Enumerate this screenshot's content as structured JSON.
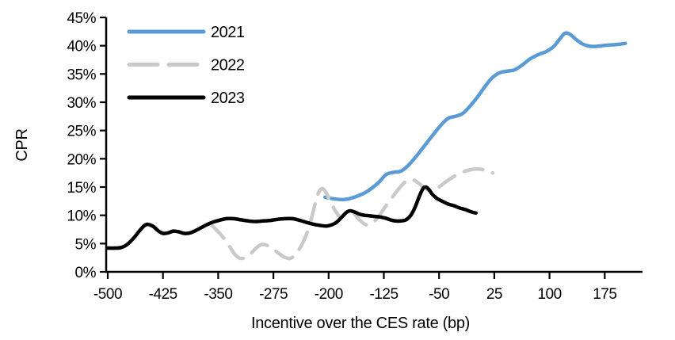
{
  "figure": {
    "background": "#ffffff",
    "axis_color": "#000000"
  },
  "chart_data": {
    "type": "line",
    "title": "",
    "xlabel": "Incentive over the CES rate (bp)",
    "ylabel": "CPR",
    "xlim": [
      -500,
      230
    ],
    "ylim": [
      0,
      45
    ],
    "x_ticks": [
      -500,
      -425,
      -350,
      -275,
      -200,
      -125,
      -50,
      25,
      100,
      175
    ],
    "y_ticks": [
      0,
      5,
      10,
      15,
      20,
      25,
      30,
      35,
      40,
      45
    ],
    "y_tick_suffix": "%",
    "grid": false,
    "legend_position": "top-left-inside",
    "series": [
      {
        "name": "2021",
        "color": "#5B9BD5",
        "dash": "solid",
        "points": [
          [
            -205,
            13.2
          ],
          [
            -192,
            12.9
          ],
          [
            -178,
            12.8
          ],
          [
            -163,
            13.3
          ],
          [
            -148,
            14.2
          ],
          [
            -133,
            15.7
          ],
          [
            -122,
            17.2
          ],
          [
            -112,
            17.6
          ],
          [
            -102,
            17.8
          ],
          [
            -92,
            18.8
          ],
          [
            -80,
            20.6
          ],
          [
            -68,
            22.6
          ],
          [
            -56,
            24.6
          ],
          [
            -45,
            26.3
          ],
          [
            -37,
            27.2
          ],
          [
            -28,
            27.5
          ],
          [
            -18,
            28.0
          ],
          [
            -8,
            29.3
          ],
          [
            2,
            30.9
          ],
          [
            12,
            32.7
          ],
          [
            22,
            34.3
          ],
          [
            32,
            35.2
          ],
          [
            42,
            35.5
          ],
          [
            52,
            35.7
          ],
          [
            62,
            36.5
          ],
          [
            74,
            37.7
          ],
          [
            86,
            38.5
          ],
          [
            96,
            39.0
          ],
          [
            106,
            39.9
          ],
          [
            114,
            41.2
          ],
          [
            121,
            42.2
          ],
          [
            128,
            42.0
          ],
          [
            136,
            41.1
          ],
          [
            145,
            40.3
          ],
          [
            155,
            39.9
          ],
          [
            165,
            39.9
          ],
          [
            178,
            40.1
          ],
          [
            190,
            40.2
          ],
          [
            203,
            40.4
          ]
        ]
      },
      {
        "name": "2022",
        "color": "#C9C9C9",
        "dash": "dashed",
        "points": [
          [
            -360,
            8.4
          ],
          [
            -348,
            6.8
          ],
          [
            -338,
            5.2
          ],
          [
            -328,
            3.2
          ],
          [
            -320,
            2.4
          ],
          [
            -310,
            2.7
          ],
          [
            -300,
            4.0
          ],
          [
            -292,
            4.8
          ],
          [
            -284,
            4.7
          ],
          [
            -276,
            4.1
          ],
          [
            -268,
            3.3
          ],
          [
            -260,
            2.6
          ],
          [
            -252,
            2.4
          ],
          [
            -244,
            3.2
          ],
          [
            -236,
            4.9
          ],
          [
            -229,
            7.0
          ],
          [
            -223,
            9.6
          ],
          [
            -218,
            12.2
          ],
          [
            -213,
            14.2
          ],
          [
            -208,
            14.7
          ],
          [
            -203,
            13.9
          ],
          [
            -197,
            12.3
          ],
          [
            -190,
            10.6
          ],
          [
            -184,
            9.7
          ],
          [
            -178,
            10.2
          ],
          [
            -173,
            11.1
          ],
          [
            -168,
            10.8
          ],
          [
            -161,
            9.6
          ],
          [
            -154,
            8.7
          ],
          [
            -147,
            8.3
          ],
          [
            -139,
            8.8
          ],
          [
            -131,
            10.0
          ],
          [
            -122,
            11.7
          ],
          [
            -113,
            13.3
          ],
          [
            -104,
            14.8
          ],
          [
            -97,
            15.8
          ],
          [
            -91,
            16.3
          ],
          [
            -84,
            16.2
          ],
          [
            -77,
            15.6
          ],
          [
            -70,
            14.9
          ],
          [
            -63,
            14.4
          ],
          [
            -56,
            14.5
          ],
          [
            -49,
            15.1
          ],
          [
            -41,
            15.9
          ],
          [
            -33,
            16.6
          ],
          [
            -24,
            17.3
          ],
          [
            -15,
            17.8
          ],
          [
            -6,
            18.1
          ],
          [
            2,
            18.2
          ],
          [
            9,
            18.1
          ],
          [
            16,
            17.8
          ],
          [
            23,
            17.5
          ]
        ]
      },
      {
        "name": "2023",
        "color": "#000000",
        "dash": "solid",
        "points": [
          [
            -500,
            4.2
          ],
          [
            -491,
            4.2
          ],
          [
            -482,
            4.3
          ],
          [
            -473,
            4.9
          ],
          [
            -464,
            6.1
          ],
          [
            -456,
            7.4
          ],
          [
            -450,
            8.2
          ],
          [
            -445,
            8.4
          ],
          [
            -438,
            8.0
          ],
          [
            -431,
            7.2
          ],
          [
            -425,
            6.8
          ],
          [
            -418,
            6.9
          ],
          [
            -411,
            7.2
          ],
          [
            -404,
            7.1
          ],
          [
            -396,
            6.8
          ],
          [
            -388,
            6.9
          ],
          [
            -379,
            7.4
          ],
          [
            -369,
            8.1
          ],
          [
            -359,
            8.7
          ],
          [
            -349,
            9.1
          ],
          [
            -339,
            9.4
          ],
          [
            -329,
            9.4
          ],
          [
            -319,
            9.2
          ],
          [
            -309,
            9.0
          ],
          [
            -299,
            8.9
          ],
          [
            -289,
            9.0
          ],
          [
            -279,
            9.1
          ],
          [
            -269,
            9.3
          ],
          [
            -259,
            9.4
          ],
          [
            -249,
            9.4
          ],
          [
            -239,
            9.1
          ],
          [
            -229,
            8.7
          ],
          [
            -220,
            8.4
          ],
          [
            -211,
            8.2
          ],
          [
            -203,
            8.1
          ],
          [
            -196,
            8.3
          ],
          [
            -189,
            8.8
          ],
          [
            -182,
            9.7
          ],
          [
            -176,
            10.5
          ],
          [
            -171,
            10.8
          ],
          [
            -165,
            10.6
          ],
          [
            -158,
            10.2
          ],
          [
            -151,
            10.0
          ],
          [
            -144,
            9.9
          ],
          [
            -137,
            9.8
          ],
          [
            -130,
            9.7
          ],
          [
            -123,
            9.5
          ],
          [
            -116,
            9.2
          ],
          [
            -109,
            9.0
          ],
          [
            -102,
            9.0
          ],
          [
            -95,
            9.2
          ],
          [
            -89,
            9.9
          ],
          [
            -83,
            11.3
          ],
          [
            -77,
            13.3
          ],
          [
            -72,
            14.7
          ],
          [
            -68,
            15.0
          ],
          [
            -64,
            14.6
          ],
          [
            -59,
            13.7
          ],
          [
            -53,
            13.0
          ],
          [
            -46,
            12.5
          ],
          [
            -38,
            12.0
          ],
          [
            -30,
            11.7
          ],
          [
            -22,
            11.3
          ],
          [
            -14,
            11.0
          ],
          [
            -6,
            10.6
          ],
          [
            0,
            10.4
          ]
        ]
      }
    ]
  },
  "legend": {
    "items": [
      "2021",
      "2022",
      "2023"
    ]
  }
}
